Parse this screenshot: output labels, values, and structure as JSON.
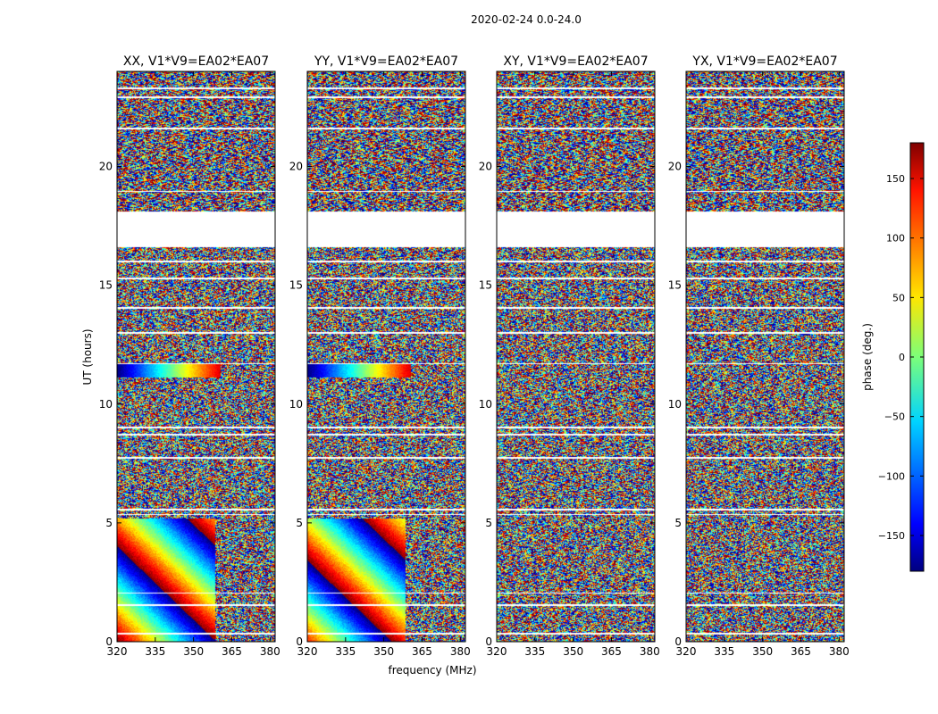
{
  "figure": {
    "suptitle": "2020-02-24 0.0-24.0",
    "xlabel": "frequency (MHz)",
    "ylabel": "UT (hours)"
  },
  "chart_data": {
    "type": "heatmap",
    "title": "2020-02-24 0.0-24.0",
    "xlabel": "frequency (MHz)",
    "ylabel": "UT (hours)",
    "xlim": [
      320,
      382
    ],
    "ylim": [
      0,
      24
    ],
    "xticks": [
      320,
      335,
      350,
      365,
      380
    ],
    "xtick_labels": [
      "320",
      "335",
      "350",
      "365",
      "380"
    ],
    "yticks": [
      0,
      5,
      10,
      15,
      20
    ],
    "ytick_labels": [
      "0",
      "5",
      "10",
      "15",
      "20"
    ],
    "colorbar": {
      "label": "phase (deg.)",
      "range": [
        -180,
        180
      ],
      "ticks": [
        150,
        100,
        50,
        0,
        -50,
        -100,
        -150
      ],
      "tick_labels": [
        "150",
        "100",
        "50",
        "0",
        "−50",
        "−100",
        "−150"
      ]
    },
    "data_gaps_hours": [
      [
        16.6,
        18.1
      ]
    ],
    "panels": [
      {
        "title": "XX, V1*V9=EA02*EA07",
        "polarization": "XX",
        "coherent_low_freq_phase_winding": true
      },
      {
        "title": "YY, V1*V9=EA02*EA07",
        "polarization": "YY",
        "coherent_low_freq_phase_winding": true
      },
      {
        "title": "XY, V1*V9=EA02*EA07",
        "polarization": "XY",
        "coherent_low_freq_phase_winding": false
      },
      {
        "title": "YX, V1*V9=EA02*EA07",
        "polarization": "YX",
        "coherent_low_freq_phase_winding": false
      }
    ]
  }
}
